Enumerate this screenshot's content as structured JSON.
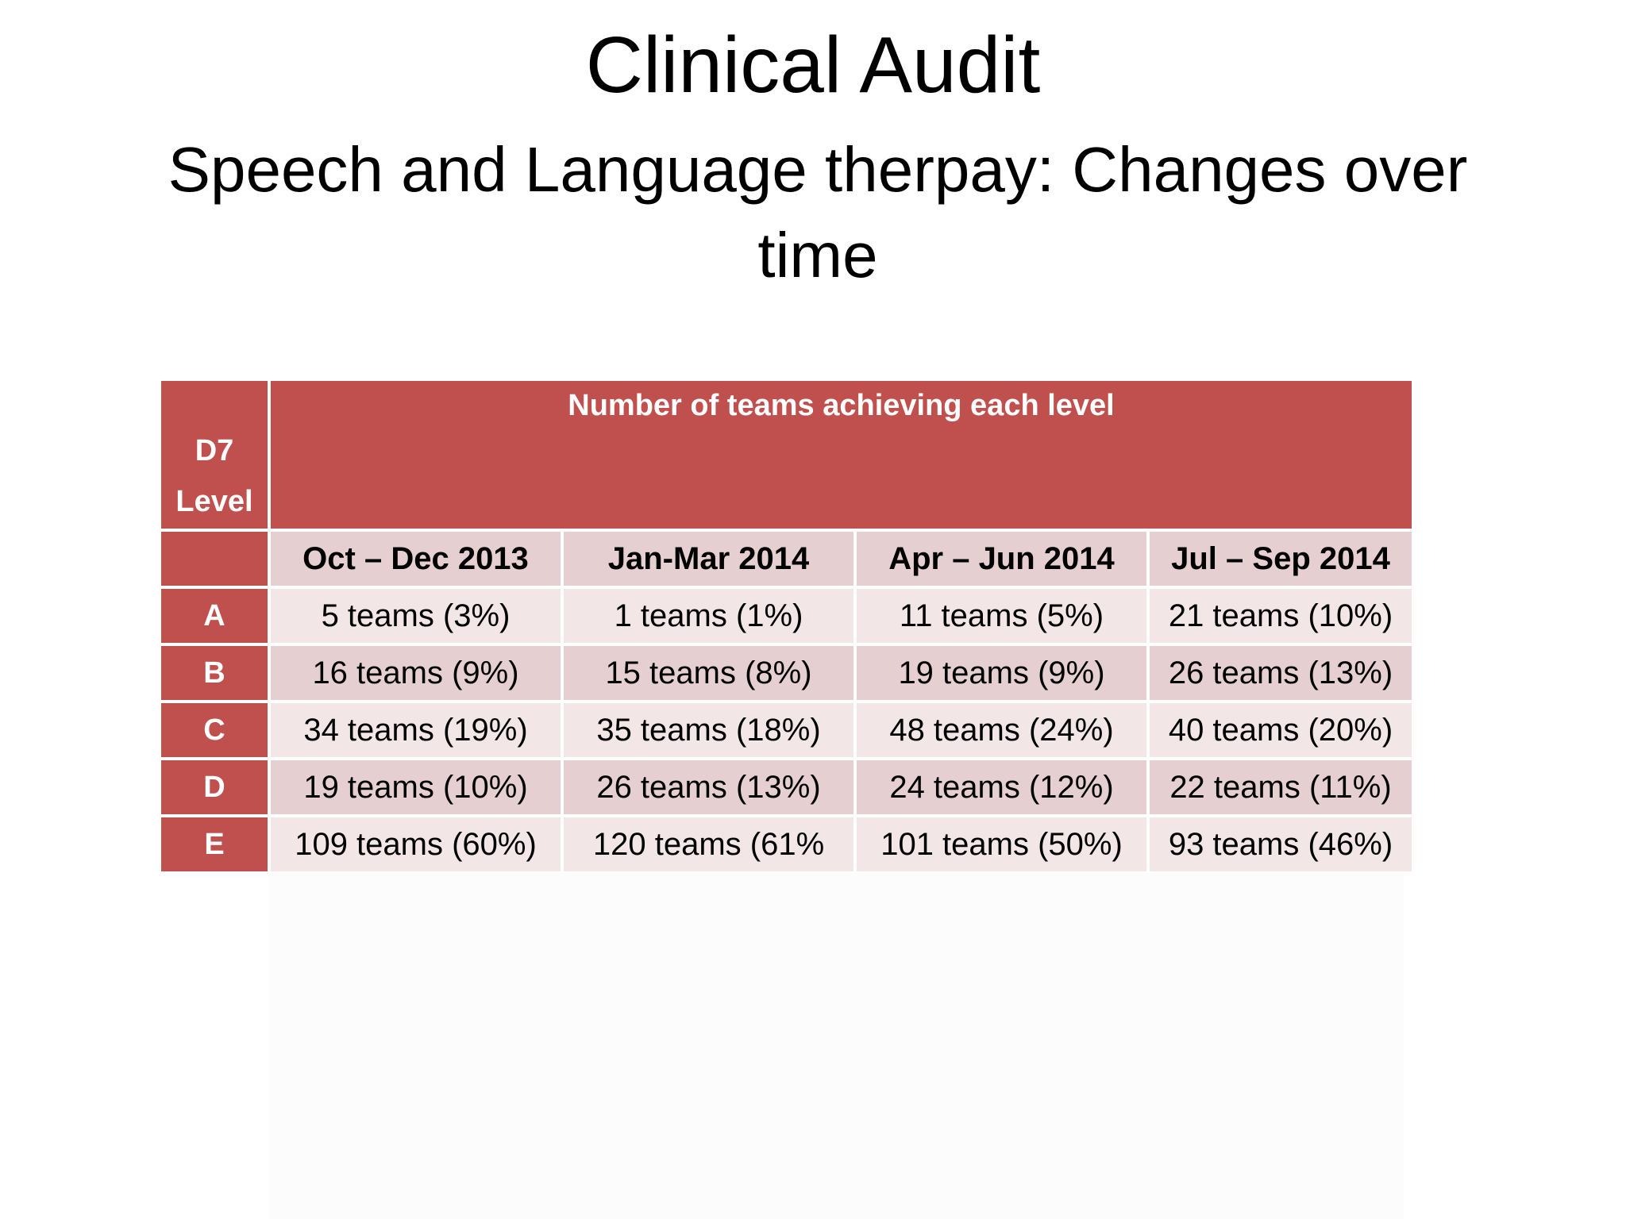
{
  "slide": {
    "title": "Clinical Audit",
    "subtitle": "Speech and Language therpay: Changes over time"
  },
  "table": {
    "corner_header_line1": "D7",
    "corner_header_line2": "Level",
    "group_header": "Number of teams achieving each level",
    "periods": [
      "Oct – Dec 2013",
      "Jan-Mar 2014",
      "Apr – Jun 2014",
      "Jul – Sep 2014"
    ],
    "rows": [
      {
        "level": "A",
        "values": [
          "5 teams (3%)",
          "1 teams (1%)",
          "11 teams (5%)",
          "21 teams (10%)"
        ]
      },
      {
        "level": "B",
        "values": [
          "16 teams (9%)",
          "15 teams (8%)",
          "19 teams (9%)",
          "26 teams (13%)"
        ]
      },
      {
        "level": "C",
        "values": [
          "34 teams (19%)",
          "35 teams (18%)",
          "48 teams (24%)",
          "40 teams (20%)"
        ]
      },
      {
        "level": "D",
        "values": [
          "19 teams (10%)",
          "26 teams (13%)",
          "24 teams (12%)",
          "22 teams (11%)"
        ]
      },
      {
        "level": "E",
        "values": [
          "109 teams (60%)",
          "120 teams (61%",
          "101 teams (50%)",
          "93 teams (46%)"
        ]
      }
    ]
  },
  "colors": {
    "header_red": "#c0504d",
    "band_dark": "#e6cfd0",
    "band_light": "#f2e6e6"
  }
}
